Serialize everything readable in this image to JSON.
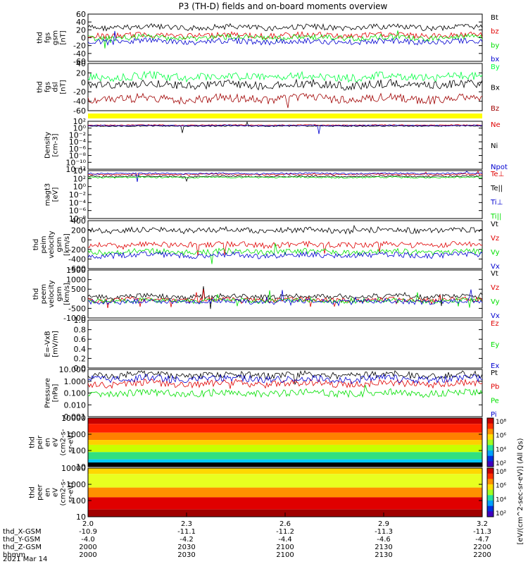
{
  "title": "P3 (TH-D) fields and on-board moments overview",
  "colors": {
    "black": "#000000",
    "red": "#e00000",
    "green": "#00e000",
    "blue": "#0000d0",
    "darkred": "#a00000",
    "brightgreen": "#00ff40",
    "yellow": "#ffff00"
  },
  "panels": [
    {
      "id": "fgs_gsm",
      "ylabel": [
        "thd",
        "fgs",
        "gsm",
        "[nT]"
      ],
      "ylim": [
        -60,
        60
      ],
      "ticks": [
        "60",
        "40",
        "20",
        "0",
        "-20",
        "-40",
        "-60"
      ],
      "legend": [
        {
          "text": "Bt",
          "color": "black"
        },
        {
          "text": "bz",
          "color": "red"
        },
        {
          "text": "by",
          "color": "green"
        },
        {
          "text": "bx",
          "color": "blue"
        }
      ]
    },
    {
      "id": "fgs_dsl",
      "ylabel": [
        "thd",
        "fgs",
        "dsl",
        "[nT]"
      ],
      "ylim": [
        -70,
        45
      ],
      "ticks": [
        "40",
        "20",
        "0",
        "-20",
        "-40",
        "-60"
      ],
      "legend": [
        {
          "text": "By",
          "color": "brightgreen"
        },
        {
          "text": "Bx",
          "color": "black"
        },
        {
          "text": "Bz",
          "color": "darkred"
        }
      ]
    },
    {
      "id": "density",
      "ylabel": [
        "Density",
        "[cm-3]"
      ],
      "scale": "log",
      "ticks": [
        "10²",
        "10⁰",
        "10⁻²",
        "10⁻⁴",
        "10⁻⁶",
        "10⁻⁸",
        "10⁻¹⁰",
        "10⁻¹²"
      ],
      "legend": [
        {
          "text": "Ne",
          "color": "red"
        },
        {
          "text": "Ni",
          "color": "black"
        },
        {
          "text": "Npot",
          "color": "blue"
        }
      ]
    },
    {
      "id": "temperature",
      "ylabel": [
        "magt3",
        "[eV]"
      ],
      "scale": "log",
      "ticks": [
        "10⁴",
        "10²",
        "10⁰",
        "10⁻²",
        "10⁻⁴",
        "10⁻⁶",
        "10⁻⁸"
      ],
      "legend": [
        {
          "text": "Te⊥",
          "color": "red"
        },
        {
          "text": "Te||",
          "color": "black"
        },
        {
          "text": "Ti⊥",
          "color": "blue"
        },
        {
          "text": "Ti||",
          "color": "green"
        }
      ]
    },
    {
      "id": "peim_velocity",
      "ylabel": [
        "thd",
        "peim",
        "velocity",
        "gsm",
        "[km/s]"
      ],
      "ylim": [
        -600,
        400
      ],
      "ticks": [
        "400",
        "200",
        "0",
        "-200",
        "-400",
        "-600"
      ],
      "legend": [
        {
          "text": "Vt",
          "color": "black"
        },
        {
          "text": "Vz",
          "color": "red"
        },
        {
          "text": "Vy",
          "color": "green"
        },
        {
          "text": "Vx",
          "color": "blue"
        }
      ]
    },
    {
      "id": "peem_velocity",
      "ylabel": [
        "thd",
        "peem",
        "velocity",
        "gsm",
        "[km/s]"
      ],
      "ylim": [
        -1100,
        1500
      ],
      "ticks": [
        "1500",
        "1000",
        "500",
        "0",
        "-500",
        "-1000"
      ],
      "legend": [
        {
          "text": "Vt",
          "color": "black"
        },
        {
          "text": "Vz",
          "color": "red"
        },
        {
          "text": "Vy",
          "color": "green"
        },
        {
          "text": "Vx",
          "color": "blue"
        }
      ]
    },
    {
      "id": "efield",
      "ylabel": [
        "E=-VxB",
        "[mV/m]"
      ],
      "ylim": [
        0,
        1
      ],
      "ticks": [
        "1.0",
        "0.8",
        "0.6",
        "0.4",
        "0.2",
        "0.0"
      ],
      "legend": [
        {
          "text": "Ez",
          "color": "red"
        },
        {
          "text": "Ey",
          "color": "green"
        },
        {
          "text": "Ex",
          "color": "blue"
        }
      ]
    },
    {
      "id": "pressure",
      "ylabel": [
        "Pressure",
        "[nPa]"
      ],
      "scale": "log",
      "ticks": [
        "10.000",
        "1.000",
        "0.100",
        "0.010",
        "0.001"
      ],
      "legend": [
        {
          "text": "Pt",
          "color": "black"
        },
        {
          "text": "Pb",
          "color": "red"
        },
        {
          "text": "Pe",
          "color": "green"
        },
        {
          "text": "Pi",
          "color": "blue"
        }
      ]
    },
    {
      "id": "peir_eflux",
      "ylabel": [
        "thd",
        "peir",
        "en",
        "eV",
        "(cm2-s-",
        "sr-eV)"
      ],
      "scale": "log",
      "ticks": [
        "10000",
        "1000",
        "100",
        "10"
      ]
    },
    {
      "id": "peer_eflux",
      "ylabel": [
        "thd",
        "peer",
        "en",
        "eV",
        "(cm2-s-",
        "sr-eV)"
      ],
      "scale": "log",
      "ticks": [
        "10000",
        "1000",
        "100",
        "10"
      ]
    }
  ],
  "colorbar": {
    "ticks": [
      "10⁸",
      "10⁶",
      "10⁴",
      "10²"
    ],
    "label": "[eV/(cm^2-sec-sr-eV)] (All Qs)"
  },
  "xaxis": {
    "rows": [
      {
        "label": "thd_X-GSM",
        "values": [
          "-10.9",
          "-11.1",
          "-11.2",
          "-11.3",
          "-11.3"
        ]
      },
      {
        "label": "thd_Y-GSM",
        "values": [
          "-4.0",
          "-4.2",
          "-4.4",
          "-4.6",
          "-4.7"
        ]
      },
      {
        "label": "thd_Z-GSM",
        "values": [
          "2000",
          "2030",
          "2100",
          "2130",
          "2200"
        ]
      },
      {
        "label": "hhmm",
        "values": [
          "2000",
          "2030",
          "2100",
          "2130",
          "2200"
        ]
      }
    ],
    "top_values": [
      "2.0",
      "2.3",
      "2.6",
      "2.9",
      "3.2"
    ],
    "date": "2021 Mar 14"
  },
  "chart_data": {
    "type": "line",
    "x_ticks": [
      "2000",
      "2030",
      "2100",
      "2130",
      "2200"
    ],
    "series_levels": {
      "fgs_gsm": {
        "Bt": 30,
        "bz": 5,
        "by": -5,
        "bx": -10
      },
      "fgs_dsl": {
        "By": 12,
        "Bx": -10,
        "Bz": -35
      },
      "peim_velocity": {
        "Vt": 270,
        "Vz": 20,
        "Vy": -120,
        "Vx": -160
      },
      "peem_velocity": {
        "Vt": 300,
        "Vz": 0,
        "Vy": -100,
        "Vx": -150
      },
      "pressure": {
        "Pt": 0.8,
        "Pb": 0.3,
        "Pe": 0.05,
        "Pi": 0.6
      }
    }
  }
}
